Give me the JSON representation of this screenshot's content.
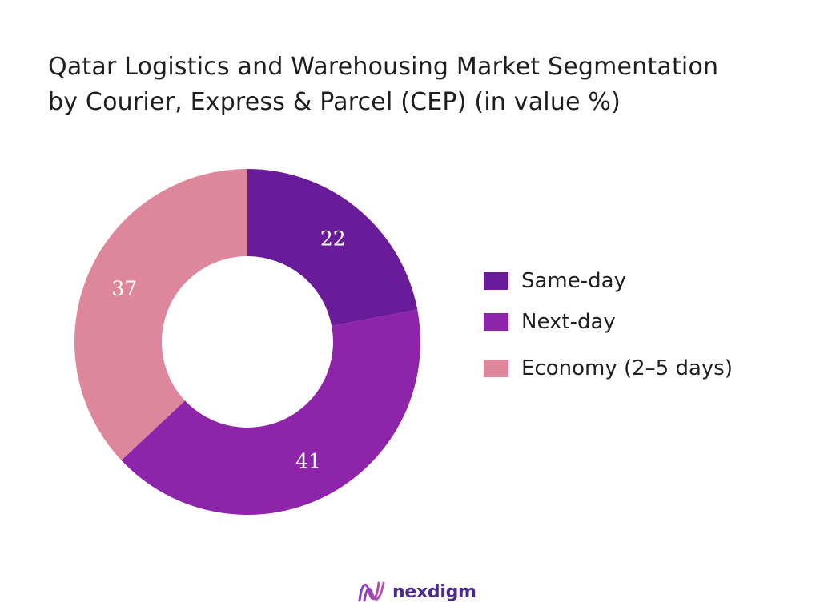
{
  "title_line1": "Qatar Logistics and Warehousing Market Segmentation",
  "title_line2": "by Courier, Express & Parcel (CEP)  (in value %)",
  "chart_data": {
    "type": "pie",
    "donut": true,
    "series": [
      {
        "name": "Same-day",
        "value": 22,
        "color": "#6a1b9a"
      },
      {
        "name": "Next-day",
        "value": 41,
        "color": "#8e24aa"
      },
      {
        "name": "Economy (2–5 days)",
        "value": 37,
        "color": "#dd869c"
      }
    ],
    "legend_position": "right",
    "data_labels": true
  },
  "brand": {
    "name": "nexdigm",
    "logo_icon": "nexdigm-wave-icon"
  }
}
